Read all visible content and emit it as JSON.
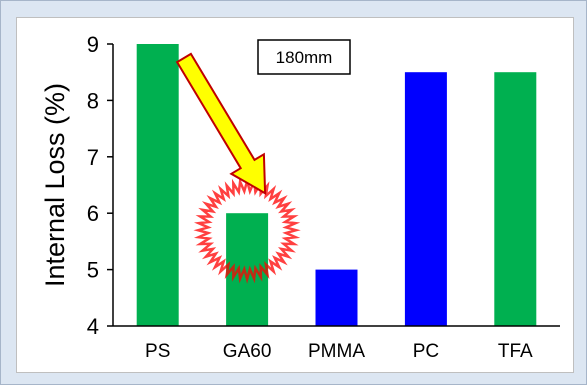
{
  "chart_data": {
    "type": "bar",
    "categories": [
      "PS",
      "GA60",
      "PMMA",
      "PC",
      "TFA"
    ],
    "values": [
      9,
      6,
      5,
      8.5,
      8.5
    ],
    "bar_colors": [
      "#00b050",
      "#00b050",
      "#0000ff",
      "#0000ff",
      "#00b050"
    ],
    "ylabel": "Internal  Loss (%)",
    "ylim": [
      4,
      9
    ],
    "yticks": [
      4,
      5,
      6,
      7,
      8,
      9
    ],
    "grid": false,
    "annotation_box": "180mm",
    "highlight": {
      "category": "GA60",
      "marker": "red-spiky-circle",
      "arrow": "yellow-arrow",
      "arrow_color": "#ffff00",
      "circle_color": "#ff0000"
    }
  }
}
